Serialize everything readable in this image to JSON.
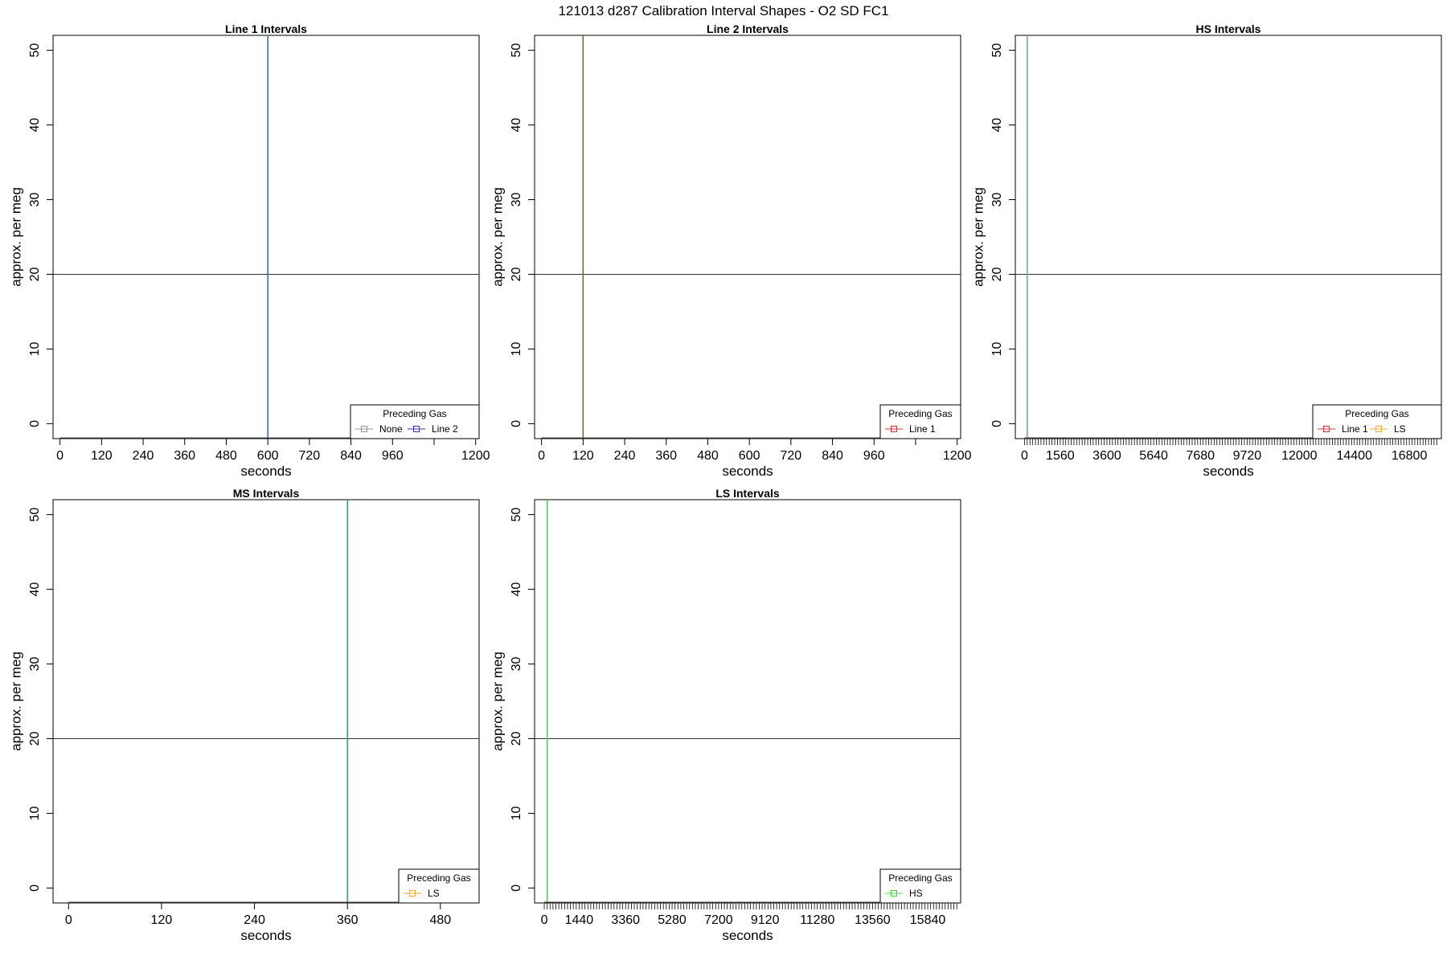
{
  "figure": {
    "title": "121013   d287   Calibration Interval Shapes - O2 SD FC1"
  },
  "chart_data": [
    {
      "type": "line",
      "title": "Line 1 Intervals",
      "xlabel": "seconds",
      "ylabel": "approx. per meg",
      "xlim": [
        -20,
        1210
      ],
      "ylim": [
        -2,
        52
      ],
      "xticks": [
        0,
        120,
        240,
        360,
        480,
        600,
        720,
        840,
        960,
        1080,
        1200
      ],
      "xtick_labels": [
        "0",
        "120",
        "240",
        "360",
        "480",
        "600",
        "720",
        "840",
        "960",
        "",
        "1200"
      ],
      "yticks": [
        0,
        10,
        20,
        30,
        40,
        50
      ],
      "hline": 20,
      "grid": false,
      "legend_title": "Preceding Gas",
      "legend_position": "bottom-right",
      "legend": [
        {
          "name": "None",
          "color": "#999999"
        },
        {
          "name": "Line 2",
          "color": "#3333cc"
        }
      ],
      "series": [
        {
          "name": "None",
          "color": "#999999",
          "points": [
            [
              600,
              -2
            ],
            [
              600,
              52
            ]
          ]
        },
        {
          "name": "Line 2",
          "color": "#2f6fb5",
          "points": [
            [
              600,
              -2
            ],
            [
              600,
              52
            ]
          ]
        }
      ]
    },
    {
      "type": "line",
      "title": "Line 2 Intervals",
      "xlabel": "seconds",
      "ylabel": "approx. per meg",
      "xlim": [
        -20,
        1210
      ],
      "ylim": [
        -2,
        52
      ],
      "xticks": [
        0,
        120,
        240,
        360,
        480,
        600,
        720,
        840,
        960,
        1080,
        1200
      ],
      "xtick_labels": [
        "0",
        "120",
        "240",
        "360",
        "480",
        "600",
        "720",
        "840",
        "960",
        "",
        "1200"
      ],
      "yticks": [
        0,
        10,
        20,
        30,
        40,
        50
      ],
      "hline": 20,
      "grid": false,
      "legend_title": "Preceding Gas",
      "legend_position": "bottom-right",
      "legend": [
        {
          "name": "Line 1",
          "color": "#e03030"
        }
      ],
      "series": [
        {
          "name": "Line 1",
          "color": "#6b6b2a",
          "points": [
            [
              120,
              -2
            ],
            [
              120,
              52
            ]
          ]
        }
      ]
    },
    {
      "type": "line",
      "title": "HS Intervals",
      "xlabel": "seconds",
      "ylabel": "approx. per meg",
      "xlim": [
        -400,
        18200
      ],
      "ylim": [
        -2,
        52
      ],
      "xticks_minor_step": 120,
      "xticks_minor_max": 18000,
      "xtick_labels_major": [
        0,
        1560,
        3600,
        5640,
        7680,
        9720,
        12000,
        14400,
        16800
      ],
      "yticks": [
        0,
        10,
        20,
        30,
        40,
        50
      ],
      "hline": 20,
      "grid": false,
      "legend_title": "Preceding Gas",
      "legend_position": "bottom-right",
      "legend": [
        {
          "name": "Line 1",
          "color": "#e03030"
        },
        {
          "name": "LS",
          "color": "#f5a623"
        }
      ],
      "series": [
        {
          "name": "LS",
          "color": "#5fba6a",
          "points": [
            [
              120,
              -2
            ],
            [
              120,
              52
            ]
          ]
        }
      ]
    },
    {
      "type": "line",
      "title": "MS Intervals",
      "xlabel": "seconds",
      "ylabel": "approx. per meg",
      "xlim": [
        -20,
        530
      ],
      "ylim": [
        -2,
        52
      ],
      "xticks": [
        0,
        120,
        240,
        360,
        480
      ],
      "xtick_labels": [
        "0",
        "120",
        "240",
        "360",
        "480"
      ],
      "yticks": [
        0,
        10,
        20,
        30,
        40,
        50
      ],
      "hline": 20,
      "grid": false,
      "legend_title": "Preceding Gas",
      "legend_position": "bottom-right",
      "legend": [
        {
          "name": "LS",
          "color": "#f5a623"
        }
      ],
      "series": [
        {
          "name": "LS",
          "color": "#3aa060",
          "points": [
            [
              360,
              -2
            ],
            [
              360,
              52
            ]
          ]
        }
      ]
    },
    {
      "type": "line",
      "title": "LS Intervals",
      "xlabel": "seconds",
      "ylabel": "approx. per meg",
      "xlim": [
        -400,
        17200
      ],
      "ylim": [
        -2,
        52
      ],
      "xticks_minor_step": 120,
      "xticks_minor_max": 17040,
      "xtick_labels_major": [
        0,
        1440,
        3360,
        5280,
        7200,
        9120,
        11280,
        13560,
        15840
      ],
      "yticks": [
        0,
        10,
        20,
        30,
        40,
        50
      ],
      "hline": 20,
      "grid": false,
      "legend_title": "Preceding Gas",
      "legend_position": "bottom-right",
      "legend": [
        {
          "name": "HS",
          "color": "#44dd44"
        }
      ],
      "series": [
        {
          "name": "HS",
          "color": "#5fba6a",
          "points": [
            [
              120,
              -2
            ],
            [
              120,
              52
            ]
          ]
        }
      ]
    }
  ]
}
